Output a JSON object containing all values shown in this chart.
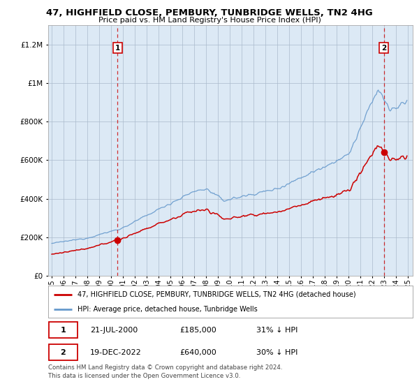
{
  "title_line1": "47, HIGHFIELD CLOSE, PEMBURY, TUNBRIDGE WELLS, TN2 4HG",
  "title_line2": "Price paid vs. HM Land Registry's House Price Index (HPI)",
  "sale1_date_year": 2000.55,
  "sale1_price": 185000,
  "sale2_date_year": 2022.96,
  "sale2_price": 640000,
  "price_color": "#cc0000",
  "hpi_color": "#6699cc",
  "legend_line1": "47, HIGHFIELD CLOSE, PEMBURY, TUNBRIDGE WELLS, TN2 4HG (detached house)",
  "legend_line2": "HPI: Average price, detached house, Tunbridge Wells",
  "footnote": "Contains HM Land Registry data © Crown copyright and database right 2024.\nThis data is licensed under the Open Government Licence v3.0.",
  "ylim_max": 1300000,
  "background_color": "#ffffff",
  "chart_bg": "#dce9f5",
  "grid_color": "#aabbcc"
}
